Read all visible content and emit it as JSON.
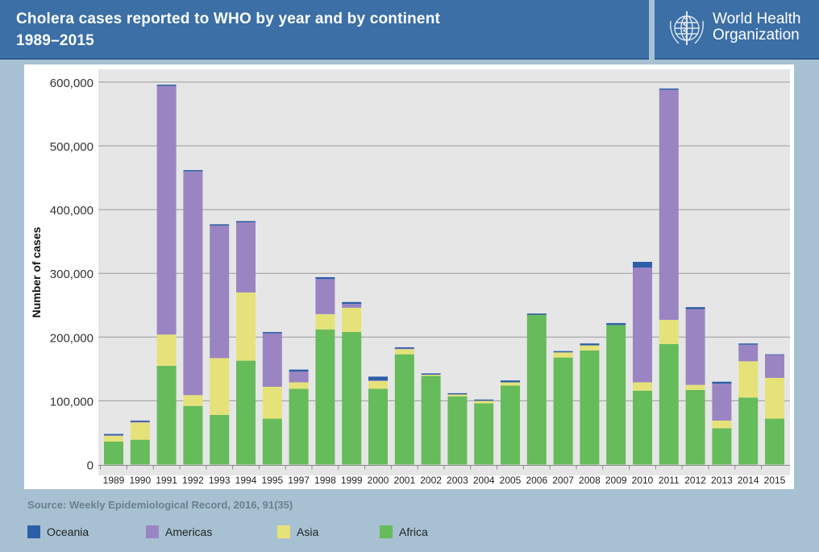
{
  "header": {
    "title_line1": "Cholera cases reported to WHO by year and by continent",
    "title_line2": "1989–2015"
  },
  "logo": {
    "text_line1": "World Health",
    "text_line2": "Organization",
    "icon": "who-emblem-icon"
  },
  "source": "Source: Weekly Epidemiological Record, 2016, 91(35)",
  "chart_data": {
    "type": "bar",
    "stacked": true,
    "title": "Cholera cases reported to WHO by year and by continent 1989–2015",
    "xlabel": "",
    "ylabel": "Number of cases",
    "ylim": [
      0,
      600000
    ],
    "yticks": [
      0,
      100000,
      200000,
      300000,
      400000,
      500000,
      600000
    ],
    "ytick_labels": [
      "0",
      "100,000",
      "200,000",
      "300,000",
      "400,000",
      "500,000",
      "600,000"
    ],
    "grid": true,
    "legend_position": "bottom",
    "categories": [
      "1989",
      "1990",
      "1991",
      "1992",
      "1993",
      "1994",
      "1995",
      "1997",
      "1998",
      "1999",
      "2000",
      "2001",
      "2002",
      "2003",
      "2004",
      "2005",
      "2006",
      "2007",
      "2008",
      "2009",
      "2010",
      "2011",
      "2012",
      "2013",
      "2014",
      "2015"
    ],
    "series": [
      {
        "name": "Africa",
        "color": "#66bb5a",
        "values": [
          36000,
          39000,
          155000,
          92000,
          78000,
          163000,
          72000,
          119000,
          212000,
          208000,
          119000,
          173000,
          139000,
          107000,
          96000,
          124000,
          235000,
          168000,
          179000,
          219000,
          116000,
          189000,
          117000,
          57000,
          105000,
          72000
        ]
      },
      {
        "name": "Asia",
        "color": "#e6e27a",
        "values": [
          9000,
          27000,
          49000,
          17000,
          89000,
          107000,
          50000,
          10000,
          24000,
          38000,
          12000,
          8000,
          2000,
          3000,
          4000,
          5000,
          0,
          8000,
          8000,
          0,
          13000,
          38000,
          8000,
          12000,
          57000,
          64000
        ]
      },
      {
        "name": "Americas",
        "color": "#9a85c2",
        "values": [
          1000,
          1000,
          390000,
          351000,
          208000,
          110000,
          84000,
          17000,
          55000,
          6000,
          1000,
          1000,
          0,
          0,
          0,
          0,
          0,
          0,
          0,
          0,
          180000,
          361000,
          119000,
          58000,
          26000,
          36000
        ]
      },
      {
        "name": "Oceania",
        "color": "#2d5fa8",
        "values": [
          2000,
          2000,
          2000,
          2000,
          2000,
          2000,
          2000,
          3000,
          3000,
          3000,
          6000,
          2000,
          2000,
          2000,
          2000,
          3000,
          2000,
          2000,
          3000,
          3000,
          9000,
          2000,
          3000,
          3000,
          2000,
          1000
        ]
      }
    ]
  },
  "legend": [
    {
      "label": "Oceania",
      "color": "#2d5fa8"
    },
    {
      "label": "Americas",
      "color": "#9a85c2"
    },
    {
      "label": "Asia",
      "color": "#e6e27a"
    },
    {
      "label": "Africa",
      "color": "#66bb5a"
    }
  ]
}
